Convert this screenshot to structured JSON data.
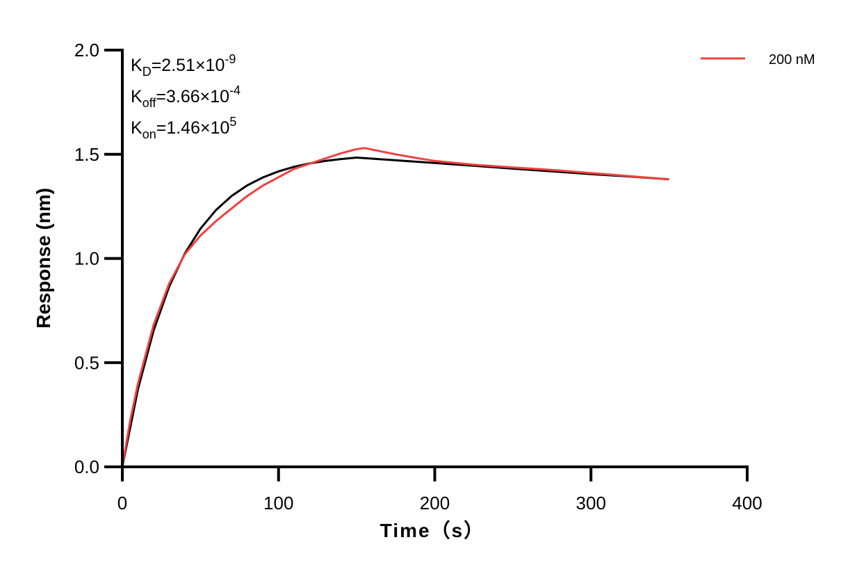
{
  "chart_data": {
    "type": "line",
    "title": "",
    "xlabel": "Time（s）",
    "ylabel": "Response (nm)",
    "xlim": [
      0,
      400
    ],
    "ylim": [
      0,
      2.0
    ],
    "xticks": [
      "0",
      "100",
      "200",
      "300",
      "400"
    ],
    "yticks": [
      "0.0",
      "0.5",
      "1.0",
      "1.5",
      "2.0"
    ],
    "grid": false,
    "legend_placement": "top-right",
    "annotations": [
      {
        "main": "K",
        "sub": "D",
        "rest": "=2.51×10",
        "sup": "-9"
      },
      {
        "main": "K",
        "sub": "off",
        "rest": "=3.66×10",
        "sup": "-4"
      },
      {
        "main": "K",
        "sub": "on",
        "rest": "=1.46×10",
        "sup": "5"
      }
    ],
    "series": [
      {
        "name": "200 nM",
        "color": "#f04040",
        "x": [
          0,
          5,
          10,
          20,
          30,
          40,
          50,
          60,
          70,
          80,
          90,
          100,
          110,
          120,
          130,
          140,
          150,
          155,
          165,
          175,
          190,
          200,
          225,
          250,
          275,
          300,
          325,
          350
        ],
        "y": [
          0,
          0.22,
          0.4,
          0.68,
          0.88,
          1.02,
          1.11,
          1.18,
          1.24,
          1.3,
          1.35,
          1.39,
          1.43,
          1.455,
          1.48,
          1.505,
          1.525,
          1.53,
          1.515,
          1.5,
          1.48,
          1.468,
          1.45,
          1.437,
          1.425,
          1.41,
          1.395,
          1.38
        ]
      },
      {
        "color": "#000000",
        "x": [
          0,
          10,
          20,
          30,
          40,
          50,
          60,
          70,
          80,
          90,
          100,
          110,
          120,
          130,
          140,
          150,
          175,
          200,
          225,
          250,
          275,
          300,
          325,
          350
        ],
        "y": [
          0,
          0.373,
          0.653,
          0.865,
          1.024,
          1.143,
          1.233,
          1.3,
          1.351,
          1.389,
          1.418,
          1.44,
          1.456,
          1.468,
          1.477,
          1.484,
          1.471,
          1.458,
          1.445,
          1.431,
          1.418,
          1.405,
          1.393,
          1.38
        ]
      }
    ]
  }
}
